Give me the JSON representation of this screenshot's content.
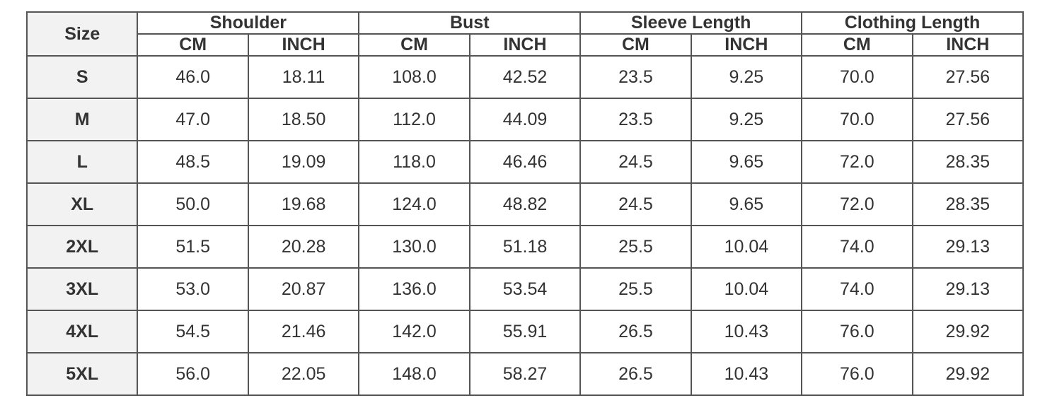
{
  "table": {
    "size_header": "Size",
    "groups": [
      "Shoulder",
      "Bust",
      "Sleeve Length",
      "Clothing Length"
    ],
    "units": [
      "CM",
      "INCH"
    ],
    "rows": [
      {
        "size": "S",
        "values": [
          "46.0",
          "18.11",
          "108.0",
          "42.52",
          "23.5",
          "9.25",
          "70.0",
          "27.56"
        ]
      },
      {
        "size": "M",
        "values": [
          "47.0",
          "18.50",
          "112.0",
          "44.09",
          "23.5",
          "9.25",
          "70.0",
          "27.56"
        ]
      },
      {
        "size": "L",
        "values": [
          "48.5",
          "19.09",
          "118.0",
          "46.46",
          "24.5",
          "9.65",
          "72.0",
          "28.35"
        ]
      },
      {
        "size": "XL",
        "values": [
          "50.0",
          "19.68",
          "124.0",
          "48.82",
          "24.5",
          "9.65",
          "72.0",
          "28.35"
        ]
      },
      {
        "size": "2XL",
        "values": [
          "51.5",
          "20.28",
          "130.0",
          "51.18",
          "25.5",
          "10.04",
          "74.0",
          "29.13"
        ]
      },
      {
        "size": "3XL",
        "values": [
          "53.0",
          "20.87",
          "136.0",
          "53.54",
          "25.5",
          "10.04",
          "74.0",
          "29.13"
        ]
      },
      {
        "size": "4XL",
        "values": [
          "54.5",
          "21.46",
          "142.0",
          "55.91",
          "26.5",
          "10.43",
          "76.0",
          "29.92"
        ]
      },
      {
        "size": "5XL",
        "values": [
          "56.0",
          "22.05",
          "148.0",
          "58.27",
          "26.5",
          "10.43",
          "76.0",
          "29.92"
        ]
      }
    ]
  }
}
